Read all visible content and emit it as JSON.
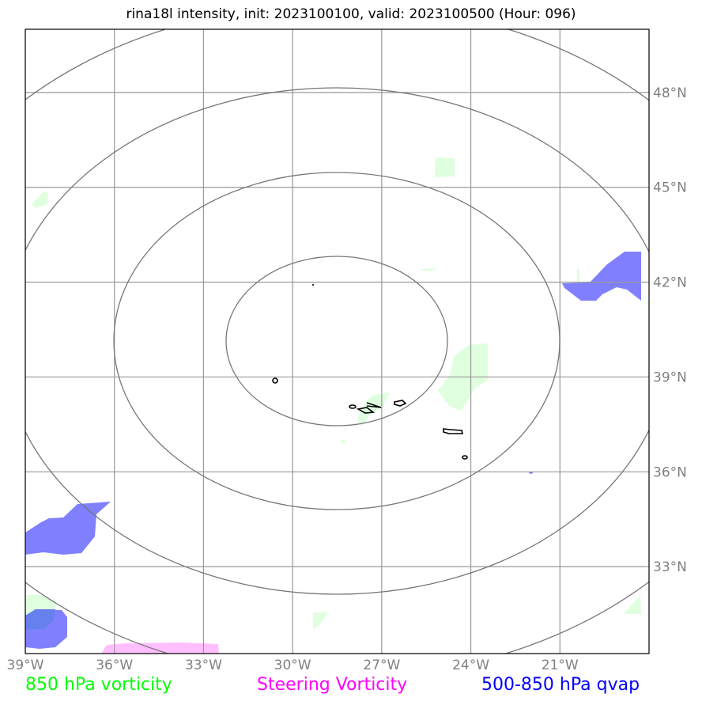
{
  "title": "rina18l intensity, init: 2023100100, valid: 2023100500 (Hour: 096)",
  "map": {
    "lon_range": [
      -39,
      -18
    ],
    "lat_range": [
      30.25,
      50
    ],
    "lon_ticks": [
      {
        "value": -39,
        "label": "39°W"
      },
      {
        "value": -36,
        "label": "36°W"
      },
      {
        "value": -33,
        "label": "33°W"
      },
      {
        "value": -30,
        "label": "30°W"
      },
      {
        "value": -27,
        "label": "27°W"
      },
      {
        "value": -24,
        "label": "24°W"
      },
      {
        "value": -21,
        "label": "21°W"
      }
    ],
    "lat_ticks": [
      {
        "value": 33,
        "label": "33°N"
      },
      {
        "value": 36,
        "label": "36°N"
      },
      {
        "value": 39,
        "label": "39°N"
      },
      {
        "value": 42,
        "label": "42°N"
      },
      {
        "value": 45,
        "label": "45°N"
      },
      {
        "value": 48,
        "label": "48°N"
      }
    ],
    "range_ring_center": {
      "lon": -29.2,
      "lat": 40.9
    },
    "gridline_color": "#999999",
    "ring_color": "#777777"
  },
  "legend": {
    "vorticity": {
      "label": "850 hPa vorticity",
      "color": "#00ff00"
    },
    "steering": {
      "label": "Steering Vorticity",
      "color": "#ff00ff"
    },
    "qvap": {
      "label": "500-850 hPa qvap",
      "color": "#0000ff"
    }
  },
  "field_colors": {
    "vorticity_fill": "#dfffdf",
    "qvap_fill": "#8080ff",
    "qvap_overlap": "#6680ee",
    "steering_fill": "#ffbfff",
    "contour": "#000000"
  }
}
